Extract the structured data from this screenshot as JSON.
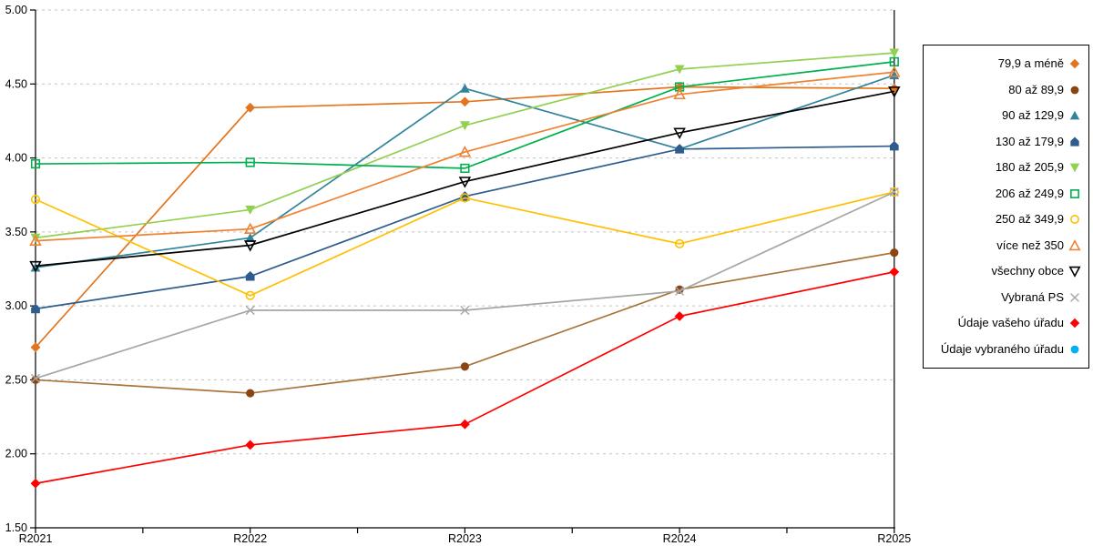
{
  "chart_data": {
    "type": "line",
    "title": "",
    "xlabel": "",
    "ylabel": "",
    "categories": [
      "R2021",
      "R2022",
      "R2023",
      "R2024",
      "R2025"
    ],
    "y_axis": {
      "min": 1.5,
      "max": 5.0,
      "step": 0.5,
      "tick_labels": [
        "1.50",
        "2.00",
        "2.50",
        "3.00",
        "3.50",
        "4.00",
        "4.50",
        "5.00"
      ]
    },
    "grid": "horizontal-dashed",
    "legend_position": "right",
    "series": [
      {
        "name": "79,9 a méně",
        "color": "#E2751D",
        "marker": "diamond",
        "filled": true,
        "values": [
          2.72,
          4.34,
          4.38,
          4.48,
          4.47
        ]
      },
      {
        "name": "80 až 89,9",
        "color": "#8B4513",
        "line_color": "#A9743C",
        "marker": "circle",
        "filled": true,
        "values": [
          2.5,
          2.41,
          2.59,
          3.11,
          3.36
        ]
      },
      {
        "name": "90 až 129,9",
        "color": "#31849B",
        "marker": "triangle-up",
        "filled": true,
        "values": [
          3.26,
          3.46,
          4.47,
          4.06,
          4.56
        ]
      },
      {
        "name": "130 až 179,9",
        "color": "#2E5C8C",
        "marker": "pentagon",
        "filled": true,
        "values": [
          2.98,
          3.2,
          3.74,
          4.06,
          4.08
        ]
      },
      {
        "name": "180 až 205,9",
        "color": "#92D050",
        "marker": "triangle-down",
        "filled": true,
        "values": [
          3.46,
          3.65,
          4.22,
          4.6,
          4.71
        ]
      },
      {
        "name": "206 až 249,9",
        "color": "#00B050",
        "marker": "square",
        "filled": false,
        "values": [
          3.96,
          3.97,
          3.93,
          4.48,
          4.65
        ]
      },
      {
        "name": "250 až 349,9",
        "color": "#FFC000",
        "marker": "circle",
        "filled": false,
        "values": [
          3.72,
          3.07,
          3.73,
          3.42,
          3.77
        ]
      },
      {
        "name": "více než 350",
        "color": "#F08232",
        "marker": "triangle-up",
        "filled": false,
        "values": [
          3.44,
          3.52,
          4.04,
          4.43,
          4.58
        ]
      },
      {
        "name": "všechny obce",
        "color": "#000000",
        "marker": "triangle-down",
        "filled": false,
        "values": [
          3.27,
          3.41,
          3.84,
          4.17,
          4.45
        ]
      },
      {
        "name": "Vybraná PS",
        "color": "#A6A6A6",
        "marker": "x",
        "filled": false,
        "values": [
          2.51,
          2.97,
          2.97,
          3.1,
          3.77
        ]
      },
      {
        "name": "Údaje vašeho úřadu",
        "color": "#FF0000",
        "marker": "diamond",
        "filled": true,
        "values": [
          1.8,
          2.06,
          2.2,
          2.93,
          3.23
        ]
      },
      {
        "name": "Údaje vybraného úřadu",
        "color": "#00B0F0",
        "marker": "circle",
        "filled": true,
        "values": []
      }
    ]
  }
}
